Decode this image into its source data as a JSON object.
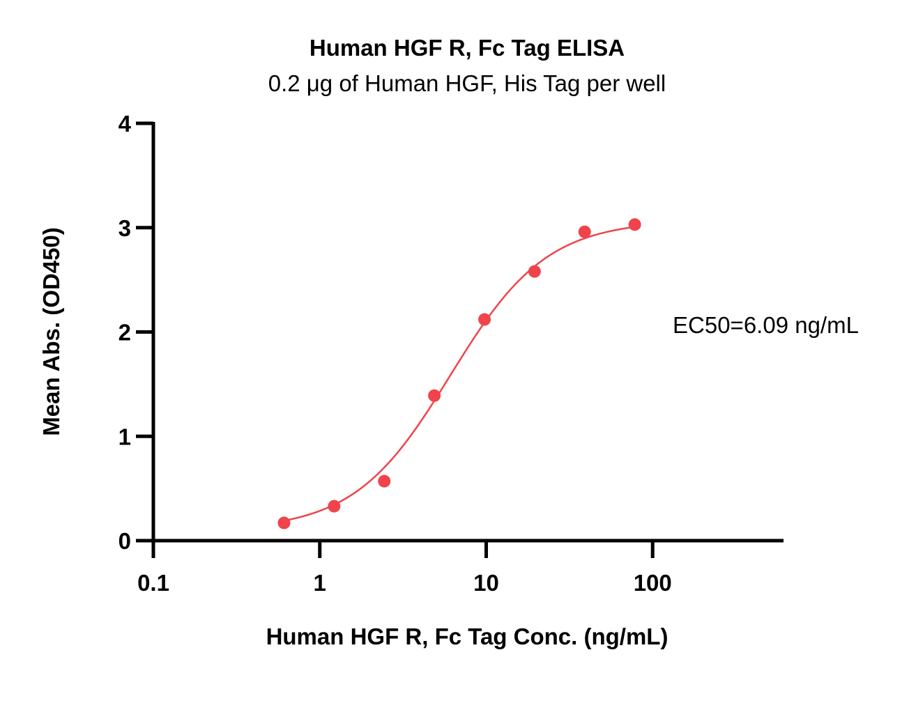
{
  "chart_data": {
    "type": "scatter",
    "title": "Human HGF R, Fc Tag ELISA",
    "subtitle": "0.2 μg of Human HGF, His Tag per well",
    "xlabel": "Human HGF R, Fc Tag Conc. (ng/mL)",
    "ylabel": "Mean Abs. (OD450)",
    "xscale": "log",
    "xlim": [
      0.1,
      600
    ],
    "ylim": [
      0,
      4
    ],
    "x_ticks": [
      0.1,
      1,
      10,
      100
    ],
    "x_tick_labels": [
      "0.1",
      "1",
      "10",
      "100"
    ],
    "y_ticks": [
      0,
      1,
      2,
      3,
      4
    ],
    "y_tick_labels": [
      "0",
      "1",
      "2",
      "3",
      "4"
    ],
    "grid": false,
    "series": [
      {
        "color": "#f0434b",
        "marker": "circle",
        "x": [
          0.61,
          1.22,
          2.44,
          4.88,
          9.77,
          19.53,
          39.06,
          78.13
        ],
        "y": [
          0.17,
          0.33,
          0.57,
          1.39,
          2.12,
          2.58,
          2.96,
          3.03
        ],
        "fit": {
          "model": "4PL",
          "bottom": 0.1,
          "top": 3.07,
          "ec50": 6.09,
          "hill": 1.5
        }
      }
    ],
    "annotations": [
      {
        "text": "EC50=6.09 ng/mL"
      }
    ]
  }
}
